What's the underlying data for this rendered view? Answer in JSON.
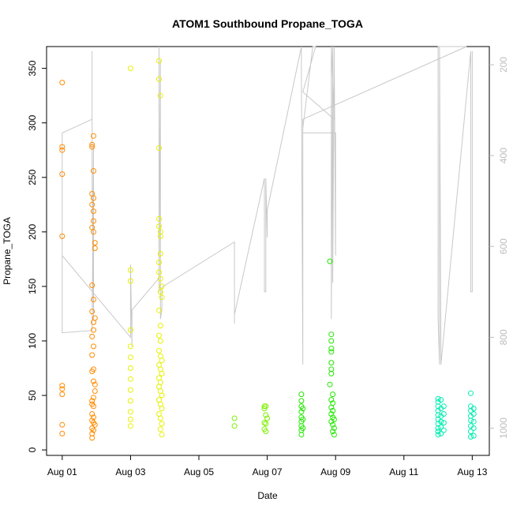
{
  "chart_data": {
    "type": "scatter",
    "title": "ATOM1 Southbound Propane_TOGA",
    "xlabel": "Date",
    "ylabel": "Propane_TOGA",
    "xlim": [
      "2016-07-31T13:00",
      "2016-08-13T12:00"
    ],
    "ylim": [
      -5,
      370
    ],
    "y2lim": [
      1060,
      160
    ],
    "x_ticks": [
      "Aug 01",
      "Aug 03",
      "Aug 05",
      "Aug 07",
      "Aug 09",
      "Aug 11",
      "Aug 13"
    ],
    "y_ticks": [
      "0",
      "50",
      "100",
      "150",
      "200",
      "250",
      "300",
      "350"
    ],
    "y2_ticks": [
      "200",
      "400",
      "600",
      "800",
      "1000"
    ],
    "grid": false,
    "series": [
      {
        "color": "#ff8c00",
        "points": [
          [
            "2016-08-01T00:00",
            337
          ],
          [
            "2016-08-01T00:00",
            278
          ],
          [
            "2016-08-01T00:00",
            275
          ],
          [
            "2016-08-01T00:00",
            253
          ],
          [
            "2016-08-01T00:00",
            196
          ],
          [
            "2016-08-01T00:00",
            59
          ],
          [
            "2016-08-01T00:00",
            56
          ],
          [
            "2016-08-01T00:00",
            51
          ],
          [
            "2016-08-01T00:00",
            23
          ],
          [
            "2016-08-01T00:00",
            15
          ],
          [
            "2016-08-01T21:00",
            280
          ],
          [
            "2016-08-01T21:00",
            278
          ],
          [
            "2016-08-01T22:00",
            288
          ],
          [
            "2016-08-01T22:00",
            256
          ],
          [
            "2016-08-01T21:00",
            235
          ],
          [
            "2016-08-01T22:00",
            231
          ],
          [
            "2016-08-01T21:00",
            225
          ],
          [
            "2016-08-01T22:00",
            219
          ],
          [
            "2016-08-01T22:00",
            210
          ],
          [
            "2016-08-01T21:00",
            204
          ],
          [
            "2016-08-01T22:00",
            200
          ],
          [
            "2016-08-01T23:00",
            190
          ],
          [
            "2016-08-01T23:00",
            185
          ],
          [
            "2016-08-01T21:00",
            151
          ],
          [
            "2016-08-01T22:00",
            138
          ],
          [
            "2016-08-01T21:00",
            127
          ],
          [
            "2016-08-01T23:00",
            121
          ],
          [
            "2016-08-01T22:00",
            117
          ],
          [
            "2016-08-01T22:00",
            110
          ],
          [
            "2016-08-01T21:00",
            104
          ],
          [
            "2016-08-01T22:00",
            95
          ],
          [
            "2016-08-01T21:00",
            87
          ],
          [
            "2016-08-01T22:00",
            74
          ],
          [
            "2016-08-01T21:00",
            72
          ],
          [
            "2016-08-01T22:00",
            63
          ],
          [
            "2016-08-01T23:00",
            60
          ],
          [
            "2016-08-01T23:00",
            54
          ],
          [
            "2016-08-01T22:00",
            48
          ],
          [
            "2016-08-01T21:00",
            45
          ],
          [
            "2016-08-01T21:00",
            42
          ],
          [
            "2016-08-01T22:00",
            40
          ],
          [
            "2016-08-01T21:00",
            33
          ],
          [
            "2016-08-01T22:00",
            30
          ],
          [
            "2016-08-01T21:00",
            27
          ],
          [
            "2016-08-01T22:00",
            25
          ],
          [
            "2016-08-01T23:00",
            23
          ],
          [
            "2016-08-01T21:00",
            20
          ],
          [
            "2016-08-01T22:00",
            18
          ],
          [
            "2016-08-01T21:00",
            15
          ],
          [
            "2016-08-01T21:00",
            11
          ]
        ]
      },
      {
        "color": "#e8f000",
        "points": [
          [
            "2016-08-03T00:00",
            350
          ],
          [
            "2016-08-03T00:00",
            165
          ],
          [
            "2016-08-03T00:00",
            155
          ],
          [
            "2016-08-03T00:00",
            110
          ],
          [
            "2016-08-03T00:00",
            95
          ],
          [
            "2016-08-03T00:00",
            85
          ],
          [
            "2016-08-03T00:00",
            75
          ],
          [
            "2016-08-03T00:00",
            65
          ],
          [
            "2016-08-03T00:00",
            55
          ],
          [
            "2016-08-03T00:00",
            45
          ],
          [
            "2016-08-03T00:00",
            35
          ],
          [
            "2016-08-03T00:00",
            28
          ],
          [
            "2016-08-03T00:00",
            22
          ],
          [
            "2016-08-03T20:00",
            357
          ],
          [
            "2016-08-03T20:00",
            340
          ],
          [
            "2016-08-03T20:00",
            277
          ],
          [
            "2016-08-03T21:00",
            325
          ],
          [
            "2016-08-03T20:00",
            212
          ],
          [
            "2016-08-03T20:00",
            205
          ],
          [
            "2016-08-03T21:00",
            200
          ],
          [
            "2016-08-03T21:00",
            196
          ],
          [
            "2016-08-03T21:00",
            180
          ],
          [
            "2016-08-03T20:00",
            172
          ],
          [
            "2016-08-03T20:00",
            163
          ],
          [
            "2016-08-03T21:00",
            157
          ],
          [
            "2016-08-03T22:00",
            150
          ],
          [
            "2016-08-03T21:00",
            145
          ],
          [
            "2016-08-03T22:00",
            140
          ],
          [
            "2016-08-03T20:00",
            128
          ],
          [
            "2016-08-03T21:00",
            114
          ],
          [
            "2016-08-03T20:00",
            105
          ],
          [
            "2016-08-03T21:00",
            100
          ],
          [
            "2016-08-03T20:00",
            91
          ],
          [
            "2016-08-03T21:00",
            86
          ],
          [
            "2016-08-03T22:00",
            82
          ],
          [
            "2016-08-03T20:00",
            78
          ],
          [
            "2016-08-03T21:00",
            74
          ],
          [
            "2016-08-03T22:00",
            70
          ],
          [
            "2016-08-03T20:00",
            66
          ],
          [
            "2016-08-03T21:00",
            62
          ],
          [
            "2016-08-03T20:00",
            58
          ],
          [
            "2016-08-03T21:00",
            54
          ],
          [
            "2016-08-03T22:00",
            50
          ],
          [
            "2016-08-03T20:00",
            46
          ],
          [
            "2016-08-03T21:00",
            42
          ],
          [
            "2016-08-03T22:00",
            38
          ],
          [
            "2016-08-03T20:00",
            33
          ],
          [
            "2016-08-03T21:00",
            29
          ],
          [
            "2016-08-03T22:00",
            24
          ],
          [
            "2016-08-03T21:00",
            19
          ],
          [
            "2016-08-03T22:00",
            14
          ]
        ]
      },
      {
        "color": "#7ff000",
        "points": [
          [
            "2016-08-06T01:00",
            29
          ],
          [
            "2016-08-06T01:00",
            22
          ],
          [
            "2016-08-06T22:00",
            40
          ],
          [
            "2016-08-06T22:00",
            38
          ],
          [
            "2016-08-06T23:00",
            40
          ],
          [
            "2016-08-06T22:00",
            25
          ],
          [
            "2016-08-06T23:00",
            24
          ],
          [
            "2016-08-06T22:00",
            19
          ],
          [
            "2016-08-06T23:00",
            17
          ],
          [
            "2016-08-06T23:00",
            32
          ],
          [
            "2016-08-07T00:00",
            29
          ]
        ]
      },
      {
        "color": "#22e800",
        "points": [
          [
            "2016-08-08T00:00",
            51
          ],
          [
            "2016-08-08T00:00",
            45
          ],
          [
            "2016-08-08T00:00",
            40
          ],
          [
            "2016-08-08T00:00",
            35
          ],
          [
            "2016-08-08T00:00",
            30
          ],
          [
            "2016-08-08T00:00",
            26
          ],
          [
            "2016-08-08T00:00",
            22
          ],
          [
            "2016-08-08T00:00",
            18
          ],
          [
            "2016-08-08T00:00",
            14
          ],
          [
            "2016-08-08T01:00",
            38
          ],
          [
            "2016-08-08T01:00",
            28
          ],
          [
            "2016-08-08T01:00",
            20
          ],
          [
            "2016-08-08T20:00",
            173
          ],
          [
            "2016-08-08T21:00",
            106
          ],
          [
            "2016-08-08T21:00",
            100
          ],
          [
            "2016-08-08T21:00",
            93
          ],
          [
            "2016-08-08T21:00",
            90
          ],
          [
            "2016-08-08T21:00",
            80
          ],
          [
            "2016-08-08T21:00",
            74
          ],
          [
            "2016-08-08T21:00",
            70
          ],
          [
            "2016-08-08T20:00",
            60
          ],
          [
            "2016-08-08T22:00",
            51
          ],
          [
            "2016-08-08T21:00",
            46
          ],
          [
            "2016-08-08T22:00",
            43
          ],
          [
            "2016-08-08T21:00",
            39
          ],
          [
            "2016-08-08T22:00",
            36
          ],
          [
            "2016-08-08T21:00",
            33
          ],
          [
            "2016-08-08T22:00",
            30
          ],
          [
            "2016-08-08T23:00",
            28
          ],
          [
            "2016-08-08T21:00",
            26
          ],
          [
            "2016-08-08T22:00",
            23
          ],
          [
            "2016-08-08T23:00",
            20
          ],
          [
            "2016-08-08T22:00",
            17
          ],
          [
            "2016-08-08T23:00",
            14
          ]
        ]
      },
      {
        "color": "#00eeb0",
        "points": [
          [
            "2016-08-12T00:00",
            47
          ],
          [
            "2016-08-12T00:00",
            44
          ],
          [
            "2016-08-12T00:00",
            40
          ],
          [
            "2016-08-12T00:00",
            36
          ],
          [
            "2016-08-12T00:00",
            32
          ],
          [
            "2016-08-12T00:00",
            28
          ],
          [
            "2016-08-12T00:00",
            24
          ],
          [
            "2016-08-12T00:00",
            20
          ],
          [
            "2016-08-12T00:00",
            17
          ],
          [
            "2016-08-12T00:00",
            14
          ],
          [
            "2016-08-12T02:00",
            46
          ],
          [
            "2016-08-12T02:00",
            38
          ],
          [
            "2016-08-12T02:00",
            31
          ],
          [
            "2016-08-12T02:00",
            26
          ],
          [
            "2016-08-12T02:00",
            21
          ],
          [
            "2016-08-12T02:00",
            15
          ],
          [
            "2016-08-12T04:00",
            40
          ],
          [
            "2016-08-12T04:00",
            33
          ],
          [
            "2016-08-12T04:00",
            25
          ],
          [
            "2016-08-12T04:00",
            18
          ],
          [
            "2016-08-12T23:00",
            52
          ],
          [
            "2016-08-12T23:00",
            40
          ],
          [
            "2016-08-12T23:00",
            36
          ],
          [
            "2016-08-12T23:00",
            31
          ],
          [
            "2016-08-12T23:00",
            27
          ],
          [
            "2016-08-12T23:00",
            22
          ],
          [
            "2016-08-12T23:00",
            17
          ],
          [
            "2016-08-12T23:00",
            12
          ],
          [
            "2016-08-13T01:00",
            38
          ],
          [
            "2016-08-13T01:00",
            33
          ],
          [
            "2016-08-13T01:00",
            26
          ],
          [
            "2016-08-13T01:00",
            20
          ],
          [
            "2016-08-13T01:00",
            13
          ]
        ]
      }
    ],
    "secondary_line": {
      "color": "#c8c8c8",
      "points": [
        [
          "2016-08-01T00:00",
          620
        ],
        [
          "2016-08-01T00:00",
          350
        ],
        [
          "2016-08-01T21:00",
          320
        ],
        [
          "2016-08-01T21:00",
          170
        ],
        [
          "2016-08-01T21:00",
          460
        ],
        [
          "2016-08-01T22:00",
          760
        ],
        [
          "2016-08-01T22:00",
          380
        ],
        [
          "2016-08-01T21:00",
          785
        ],
        [
          "2016-08-01T00:00",
          790
        ],
        [
          "2016-08-01T00:00",
          620
        ],
        [
          "2016-08-03T00:00",
          800
        ],
        [
          "2016-08-03T00:00",
          640
        ],
        [
          "2016-08-03T01:00",
          820
        ],
        [
          "2016-08-03T01:00",
          740
        ],
        [
          "2016-08-03T20:00",
          670
        ],
        [
          "2016-08-03T20:00",
          160
        ],
        [
          "2016-08-03T20:00",
          700
        ],
        [
          "2016-08-03T21:00",
          190
        ],
        [
          "2016-08-03T21:00",
          760
        ],
        [
          "2016-08-03T22:00",
          740
        ],
        [
          "2016-08-03T22:00",
          690
        ],
        [
          "2016-08-06T01:00",
          590
        ],
        [
          "2016-08-06T01:00",
          770
        ],
        [
          "2016-08-06T01:00",
          750
        ],
        [
          "2016-08-06T22:00",
          450
        ],
        [
          "2016-08-06T22:00",
          700
        ],
        [
          "2016-08-06T23:00",
          700
        ],
        [
          "2016-08-06T23:00",
          450
        ],
        [
          "2016-08-07T00:00",
          580
        ],
        [
          "2016-08-07T00:00",
          520
        ],
        [
          "2016-08-08T00:00",
          160
        ],
        [
          "2016-08-08T00:00",
          230
        ],
        [
          "2016-08-08T01:00",
          860
        ],
        [
          "2016-08-08T01:00",
          340
        ],
        [
          "2016-08-08T08:00",
          160
        ],
        [
          "2016-08-08T10:00",
          160
        ],
        [
          "2016-08-08T01:00",
          260
        ],
        [
          "2016-08-08T23:00",
          320
        ],
        [
          "2016-08-08T21:00",
          160
        ],
        [
          "2016-08-08T21:00",
          760
        ],
        [
          "2016-08-08T22:00",
          160
        ],
        [
          "2016-08-08T22:00",
          680
        ],
        [
          "2016-08-08T23:00",
          160
        ],
        [
          "2016-08-09T00:00",
          620
        ],
        [
          "2016-08-09T00:00",
          350
        ],
        [
          "2016-08-08T01:00",
          350
        ],
        [
          "2016-08-08T01:00",
          320
        ],
        [
          "2016-08-12T20:00",
          160
        ],
        [
          "2016-08-12T00:00",
          160
        ],
        [
          "2016-08-12T00:00",
          760
        ],
        [
          "2016-08-12T01:00",
          860
        ],
        [
          "2016-08-12T01:00",
          160
        ],
        [
          "2016-08-12T02:00",
          860
        ],
        [
          "2016-08-12T23:00",
          170
        ],
        [
          "2016-08-12T23:00",
          700
        ],
        [
          "2016-08-13T00:00",
          700
        ],
        [
          "2016-08-13T00:00",
          170
        ]
      ]
    }
  }
}
